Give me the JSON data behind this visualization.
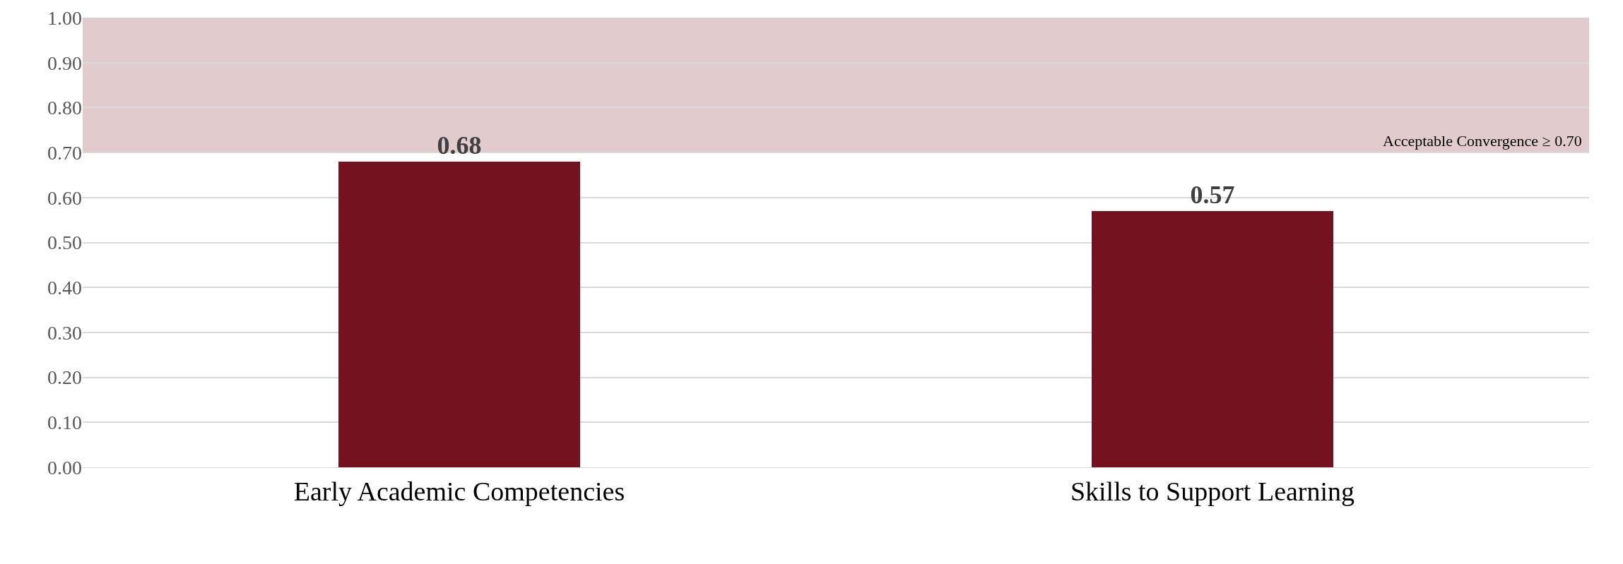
{
  "chart_data": {
    "type": "bar",
    "categories": [
      "Early Academic Competencies",
      "Skills to Support Learning"
    ],
    "values": [
      0.68,
      0.57
    ],
    "color": "#74121f",
    "ylim": [
      0,
      1
    ],
    "yticks": [
      {
        "value": 0,
        "label": "0.00"
      },
      {
        "value": 0.1,
        "label": "0.10"
      },
      {
        "value": 0.2,
        "label": "0.20"
      },
      {
        "value": 0.3,
        "label": "0.30"
      },
      {
        "value": 0.4,
        "label": "0.40"
      },
      {
        "value": 0.5,
        "label": "0.50"
      },
      {
        "value": 0.6,
        "label": "0.60"
      },
      {
        "value": 0.7,
        "label": "0.70"
      },
      {
        "value": 0.8,
        "label": "0.80"
      },
      {
        "value": 0.9,
        "label": "0.90"
      },
      {
        "value": 1,
        "label": "1.00"
      }
    ],
    "grid": "y",
    "data_labels": true,
    "legend": false,
    "bands": [
      {
        "axis": "y",
        "from": 0.7,
        "to": 1,
        "label": "Acceptable Convergence ≥ 0.70",
        "color": "#e2cbcd"
      }
    ]
  }
}
